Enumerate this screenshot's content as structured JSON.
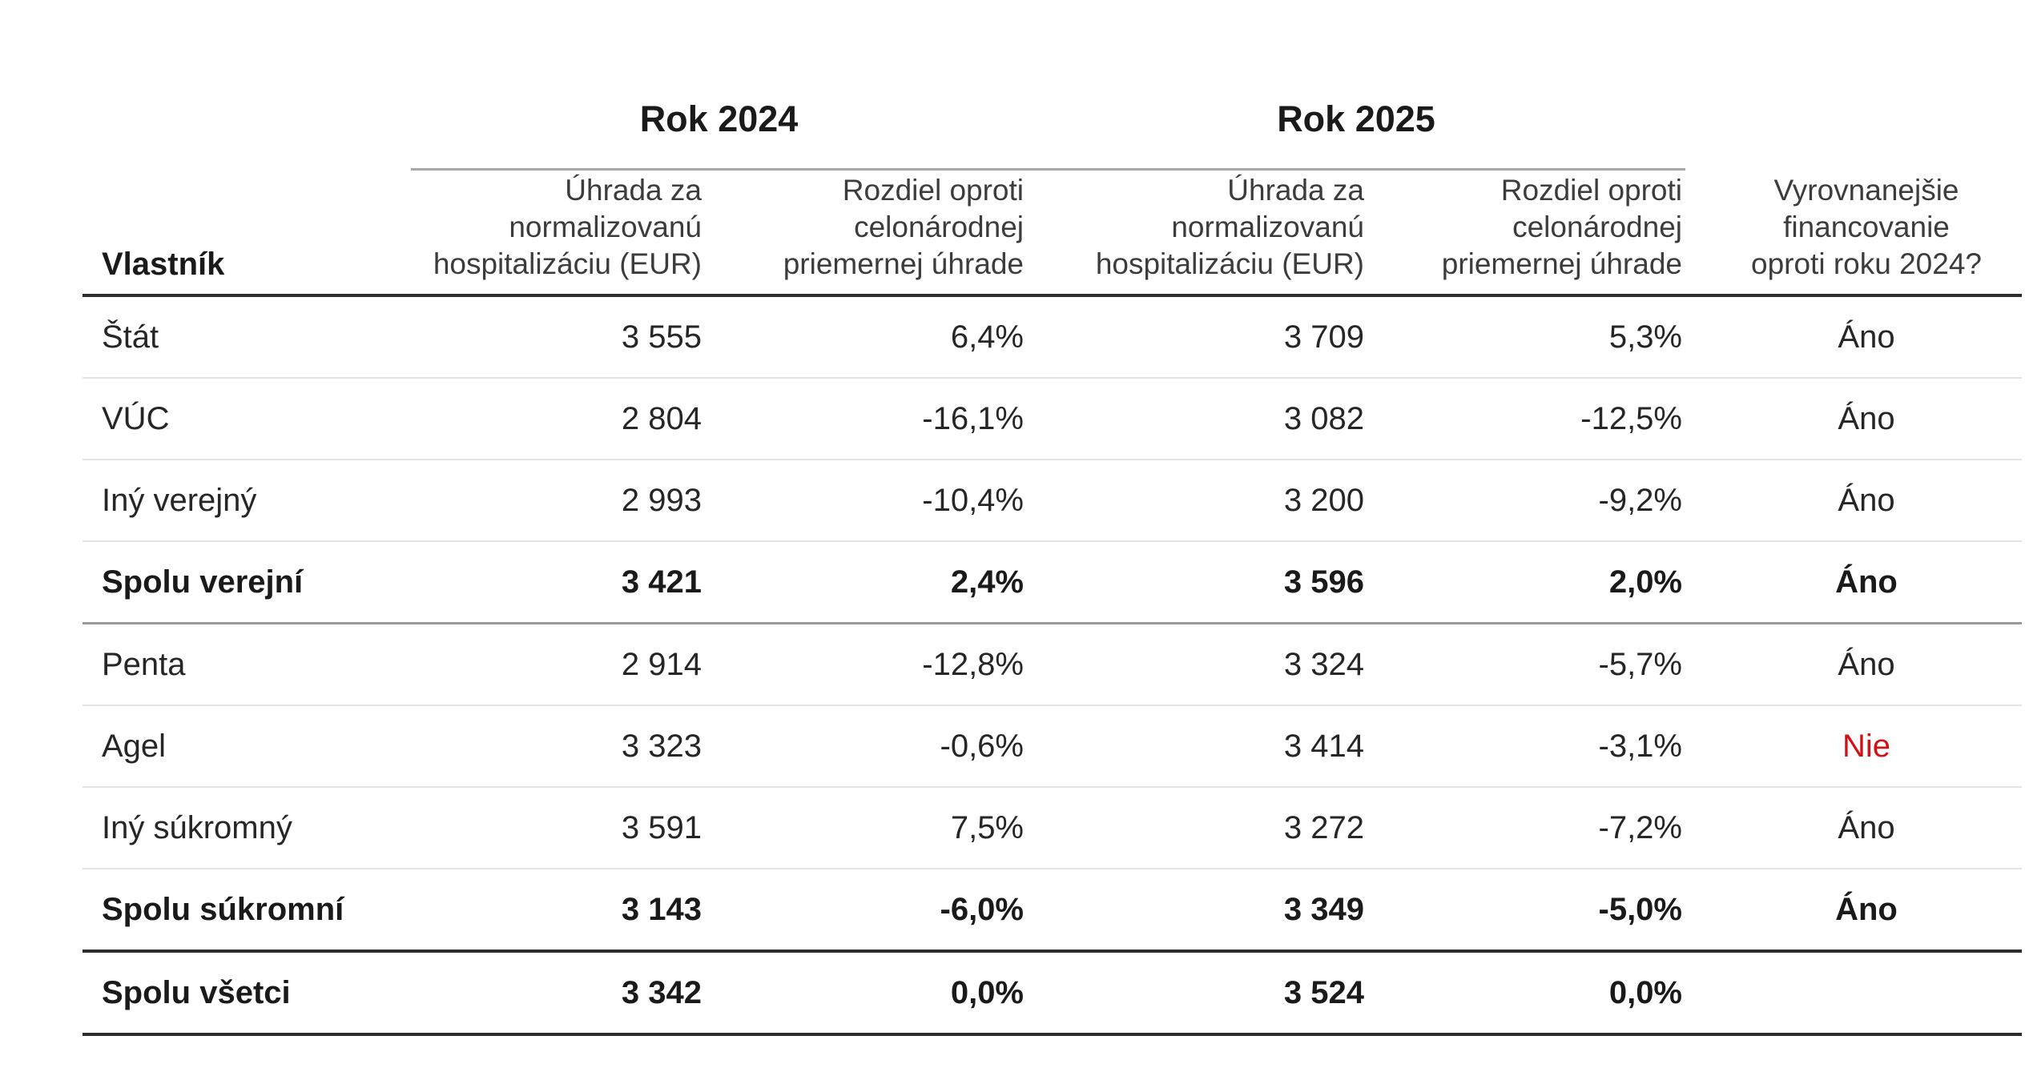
{
  "table": {
    "owner_col_header": "Vlastník",
    "year_headers": [
      "Rok 2024",
      "Rok 2025"
    ],
    "subheader_payment": "Úhrada za\nnormalizovanú\nhospitalizáciu (EUR)",
    "subheader_diff": "Rozdiel oproti\ncelonárodnej\npriemernej úhrade",
    "subheader_balanced": "Vyrovnanejšie\nfinancovanie\noproti roku 2024?",
    "rows": [
      {
        "owner": "Štát",
        "p2024": "3 555",
        "d2024": "6,4%",
        "p2025": "3 709",
        "d2025": "5,3%",
        "balanced": "Áno"
      },
      {
        "owner": "VÚC",
        "p2024": "2 804",
        "d2024": "-16,1%",
        "p2025": "3 082",
        "d2025": "-12,5%",
        "balanced": "Áno"
      },
      {
        "owner": "Iný verejný",
        "p2024": "2 993",
        "d2024": "-10,4%",
        "p2025": "3 200",
        "d2025": "-9,2%",
        "balanced": "Áno"
      },
      {
        "owner": "Spolu verejní",
        "p2024": "3 421",
        "d2024": "2,4%",
        "p2025": "3 596",
        "d2025": "2,0%",
        "balanced": "Áno"
      },
      {
        "owner": "Penta",
        "p2024": "2 914",
        "d2024": "-12,8%",
        "p2025": "3 324",
        "d2025": "-5,7%",
        "balanced": "Áno"
      },
      {
        "owner": "Agel",
        "p2024": "3 323",
        "d2024": "-0,6%",
        "p2025": "3 414",
        "d2025": "-3,1%",
        "balanced": "Nie"
      },
      {
        "owner": "Iný súkromný",
        "p2024": "3 591",
        "d2024": "7,5%",
        "p2025": "3 272",
        "d2025": "-7,2%",
        "balanced": "Áno"
      },
      {
        "owner": "Spolu súkromní",
        "p2024": "3 143",
        "d2024": "-6,0%",
        "p2025": "3 349",
        "d2025": "-5,0%",
        "balanced": "Áno"
      },
      {
        "owner": "Spolu všetci",
        "p2024": "3 342",
        "d2024": "0,0%",
        "p2025": "3 524",
        "d2025": "0,0%",
        "balanced": ""
      }
    ],
    "colors": {
      "answer_no_red": "#d01217",
      "text_default": "#262626",
      "rule_dark": "#2d2d2d",
      "rule_medium": "#9a9a9a",
      "rule_light": "#e4e4e4",
      "rule_year": "#a8a8a8"
    }
  },
  "chart_data": {
    "type": "table",
    "columns": [
      "Vlastník",
      "Rok 2024 – Úhrada za normalizovanú hospitalizáciu (EUR)",
      "Rok 2024 – Rozdiel oproti celonárodnej priemernej úhrade",
      "Rok 2025 – Úhrada za normalizovanú hospitalizáciu (EUR)",
      "Rok 2025 – Rozdiel oproti celonárodnej priemernej úhrade",
      "Vyrovnanejšie financovanie oproti roku 2024?"
    ],
    "rows": [
      [
        "Štát",
        3555,
        "6,4%",
        3709,
        "5,3%",
        "Áno"
      ],
      [
        "VÚC",
        2804,
        "-16,1%",
        3082,
        "-12,5%",
        "Áno"
      ],
      [
        "Iný verejný",
        2993,
        "-10,4%",
        3200,
        "-9,2%",
        "Áno"
      ],
      [
        "Spolu verejní",
        3421,
        "2,4%",
        3596,
        "2,0%",
        "Áno"
      ],
      [
        "Penta",
        2914,
        "-12,8%",
        3324,
        "-5,7%",
        "Áno"
      ],
      [
        "Agel",
        3323,
        "-0,6%",
        3414,
        "-3,1%",
        "Nie"
      ],
      [
        "Iný súkromný",
        3591,
        "7,5%",
        3272,
        "-7,2%",
        "Áno"
      ],
      [
        "Spolu súkromní",
        3143,
        "-6,0%",
        3349,
        "-5,0%",
        "Áno"
      ],
      [
        "Spolu všetci",
        3342,
        "0,0%",
        3524,
        "0,0%",
        ""
      ]
    ],
    "bold_rows": [
      "Spolu verejní",
      "Spolu súkromní",
      "Spolu všetci"
    ],
    "notes": "Hodnota 'Nie' v riadku Agel je zvýraznená červenou farbou."
  }
}
